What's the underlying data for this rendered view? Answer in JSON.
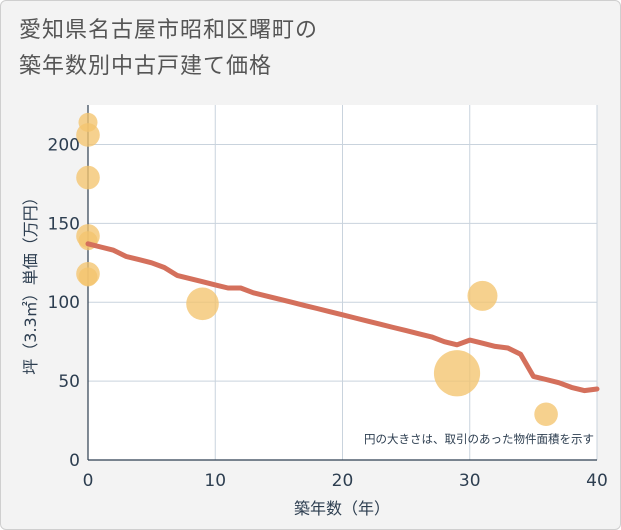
{
  "title_line1": "愛知県名古屋市昭和区曙町の",
  "title_line2": "築年数別中古戸建て価格",
  "chart_data": {
    "type": "scatter",
    "title": "愛知県名古屋市昭和区曙町の築年数別中古戸建て価格",
    "xlabel": "築年数（年）",
    "ylabel": "坪（3.3㎡）単価（万円）",
    "xlim": [
      0,
      40
    ],
    "ylim": [
      0,
      225
    ],
    "xticks": [
      0,
      10,
      20,
      30,
      40
    ],
    "yticks": [
      0,
      50,
      100,
      150,
      200
    ],
    "grid": true,
    "note": "円の大きさは、取引のあった物件面積を示す",
    "points": [
      {
        "x": 0,
        "y": 214,
        "size": 1
      },
      {
        "x": 0,
        "y": 206,
        "size": 2
      },
      {
        "x": 0,
        "y": 179,
        "size": 2
      },
      {
        "x": 0,
        "y": 142,
        "size": 2
      },
      {
        "x": 0,
        "y": 139,
        "size": 1
      },
      {
        "x": 0,
        "y": 118,
        "size": 2
      },
      {
        "x": 0,
        "y": 116,
        "size": 1
      },
      {
        "x": 9,
        "y": 99,
        "size": 5
      },
      {
        "x": 29,
        "y": 55,
        "size": 12
      },
      {
        "x": 31,
        "y": 104,
        "size": 4
      },
      {
        "x": 36,
        "y": 29,
        "size": 2
      }
    ],
    "trend": {
      "x": [
        0,
        1,
        2,
        3,
        4,
        5,
        6,
        7,
        8,
        9,
        10,
        11,
        12,
        13,
        14,
        15,
        16,
        17,
        18,
        19,
        20,
        21,
        22,
        23,
        24,
        25,
        26,
        27,
        28,
        29,
        30,
        31,
        32,
        33,
        34,
        35,
        36,
        37,
        38,
        39,
        40
      ],
      "y": [
        137,
        135,
        133,
        129,
        127,
        125,
        122,
        117,
        115,
        113,
        111,
        109,
        109,
        106,
        104,
        102,
        100,
        98,
        96,
        94,
        92,
        90,
        88,
        86,
        84,
        82,
        80,
        78,
        75,
        73,
        76,
        74,
        72,
        71,
        67,
        53,
        51,
        49,
        46,
        44,
        45
      ]
    }
  }
}
